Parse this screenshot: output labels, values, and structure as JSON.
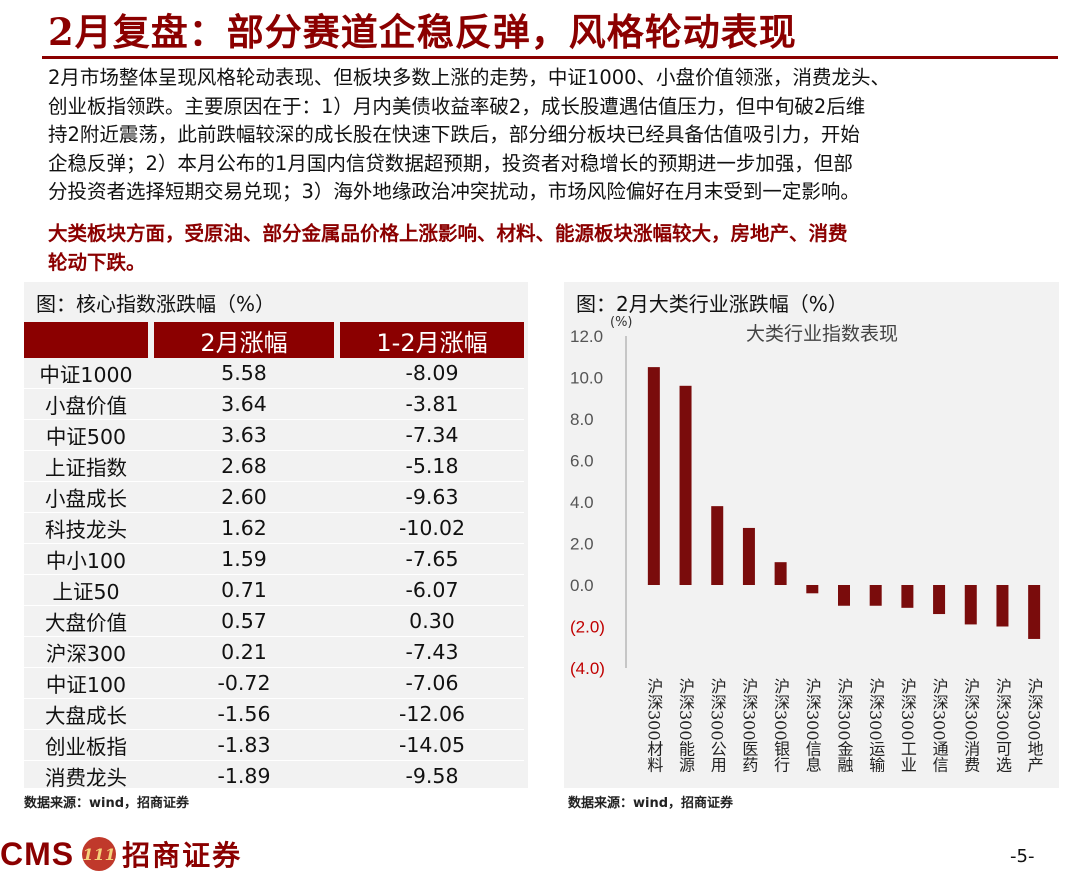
{
  "title": "2月复盘：部分赛道企稳反弹，风格轮动表现",
  "paragraph_lines": [
    "2月市场整体呈现风格轮动表现、但板块多数上涨的走势，中证1000、小盘价值领涨，消费龙头、",
    "创业板指领跌。主要原因在于：1）月内美债收益率破2，成长股遭遇估值压力，但中旬破2后维",
    "持2附近震荡，此前跌幅较深的成长股在快速下跌后，部分细分板块已经具备估值吸引力，开始",
    "企稳反弹；2）本月公布的1月国内信贷数据超预期，投资者对稳增长的预期进一步加强，但部",
    "分投资者选择短期交易兑现；3）海外地缘政治冲突扰动，市场风险偏好在月末受到一定影响。"
  ],
  "highlight_lines": [
    "大类板块方面，受原油、部分金属品价格上涨影响、材料、能源板块涨幅较大，房地产、消费",
    "轮动下跌。"
  ],
  "left_panel": {
    "title": "图：核心指数涨跌幅（%）",
    "headers": [
      "",
      "2月涨幅",
      "1-2月涨幅"
    ],
    "rows": [
      [
        "中证1000",
        "5.58",
        "-8.09"
      ],
      [
        "小盘价值",
        "3.64",
        "-3.81"
      ],
      [
        "中证500",
        "3.63",
        "-7.34"
      ],
      [
        "上证指数",
        "2.68",
        "-5.18"
      ],
      [
        "小盘成长",
        "2.60",
        "-9.63"
      ],
      [
        "科技龙头",
        "1.62",
        "-10.02"
      ],
      [
        "中小100",
        "1.59",
        "-7.65"
      ],
      [
        "上证50",
        "0.71",
        "-6.07"
      ],
      [
        "大盘价值",
        "0.57",
        "0.30"
      ],
      [
        "沪深300",
        "0.21",
        "-7.43"
      ],
      [
        "中证100",
        "-0.72",
        "-7.06"
      ],
      [
        "大盘成长",
        "-1.56",
        "-12.06"
      ],
      [
        "创业板指",
        "-1.83",
        "-14.05"
      ],
      [
        "消费龙头",
        "-1.89",
        "-9.58"
      ]
    ],
    "source": "数据来源：wind，招商证券"
  },
  "right_panel": {
    "title": "图：2月大类行业涨跌幅（%）",
    "source": "数据来源：wind，招商证券"
  },
  "chart_data": {
    "type": "bar",
    "title": "大类行业指数表现",
    "ylabel": "(%)",
    "ylim": [
      -4,
      12
    ],
    "yticks": [
      "12.0",
      "10.0",
      "8.0",
      "6.0",
      "4.0",
      "2.0",
      "0.0",
      "(2.0)",
      "(4.0)"
    ],
    "categories": [
      "沪深300材料",
      "沪深300能源",
      "沪深300公用",
      "沪深300医药",
      "沪深300银行",
      "沪深300信息",
      "沪深300金融",
      "沪深300运输",
      "沪深300工业",
      "沪深300通信",
      "沪深300消费",
      "沪深300可选",
      "沪深300地产"
    ],
    "values": [
      10.5,
      9.6,
      3.8,
      2.75,
      1.1,
      -0.4,
      -1.0,
      -1.0,
      -1.1,
      -1.4,
      -1.9,
      -2.0,
      -2.6
    ],
    "bar_color": "#7a0c0c",
    "grid": false
  },
  "footer": {
    "cms": "CMS",
    "logo_mark": "111",
    "brand": "招商证券",
    "page": "-5-"
  }
}
